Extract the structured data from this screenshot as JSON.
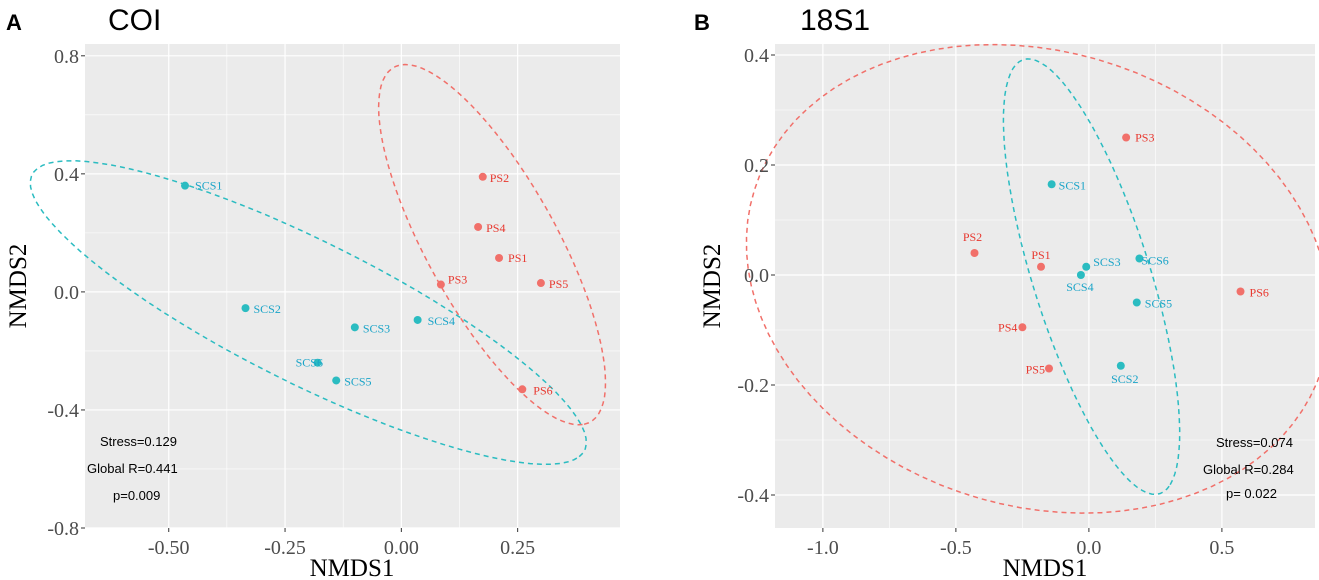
{
  "colors": {
    "group_PS": "#f1706a",
    "group_SCS": "#2bbcc1",
    "label_PS": "#e8382f",
    "label_SCS": "#1aa4c8",
    "panel_bg": "#ebebeb",
    "grid": "#ffffff",
    "axis_text": "#4d4d4d"
  },
  "chart_data": [
    {
      "type": "scatter",
      "panel_label": "A",
      "title": "COI",
      "xlabel": "NMDS1",
      "ylabel": "NMDS2",
      "xlim": [
        -0.68,
        0.47
      ],
      "ylim": [
        -0.8,
        0.84
      ],
      "xticks": [
        -0.5,
        -0.25,
        0.0,
        0.25
      ],
      "xtick_labels": [
        "-0.50",
        "-0.25",
        "0.00",
        "0.25"
      ],
      "yticks": [
        -0.8,
        -0.4,
        0.0,
        0.4,
        0.8
      ],
      "ytick_labels": [
        "-0.8",
        "-0.4",
        "0.0",
        "0.4",
        "0.8"
      ],
      "series": [
        {
          "name": "PS",
          "points": [
            {
              "label": "PS1",
              "x": 0.21,
              "y": 0.115
            },
            {
              "label": "PS2",
              "x": 0.175,
              "y": 0.39
            },
            {
              "label": "PS3",
              "x": 0.085,
              "y": 0.025
            },
            {
              "label": "PS4",
              "x": 0.165,
              "y": 0.22
            },
            {
              "label": "PS5",
              "x": 0.3,
              "y": 0.03
            },
            {
              "label": "PS6",
              "x": 0.26,
              "y": -0.33
            }
          ],
          "ellipse": {
            "cx": 0.195,
            "cy": 0.16,
            "rx": 0.64,
            "ry": 0.15,
            "angle": -72
          }
        },
        {
          "name": "SCS",
          "points": [
            {
              "label": "SCS1",
              "x": -0.465,
              "y": 0.36
            },
            {
              "label": "SCS2",
              "x": -0.335,
              "y": -0.055
            },
            {
              "label": "SCS3",
              "x": -0.1,
              "y": -0.12
            },
            {
              "label": "SCS4",
              "x": 0.035,
              "y": -0.095
            },
            {
              "label": "SCS5",
              "x": -0.14,
              "y": -0.3
            },
            {
              "label": "SCS6",
              "x": -0.18,
              "y": -0.24
            }
          ],
          "ellipse": {
            "cx": -0.2,
            "cy": -0.07,
            "rx": 0.76,
            "ry": 0.21,
            "angle": -40
          }
        }
      ],
      "annotations": [
        "Stress=0.129",
        "Global R=0.441",
        "p=0.009"
      ]
    },
    {
      "type": "scatter",
      "panel_label": "B",
      "title": "18S1",
      "xlabel": "NMDS1",
      "ylabel": "NMDS2",
      "xlim": [
        -1.18,
        0.85
      ],
      "ylim": [
        -0.46,
        0.42
      ],
      "xticks": [
        -1.0,
        -0.5,
        0.0,
        0.5
      ],
      "xtick_labels": [
        "-1.0",
        "-0.5",
        "0.0",
        "0.5"
      ],
      "yticks": [
        -0.4,
        -0.2,
        0.0,
        0.2,
        0.4
      ],
      "ytick_labels": [
        "-0.4",
        "-0.2",
        "0.0",
        "0.2",
        "0.4"
      ],
      "series": [
        {
          "name": "PS",
          "points": [
            {
              "label": "PS1",
              "x": -0.18,
              "y": 0.015
            },
            {
              "label": "PS2",
              "x": -0.43,
              "y": 0.04
            },
            {
              "label": "PS3",
              "x": 0.14,
              "y": 0.25
            },
            {
              "label": "PS4",
              "x": -0.25,
              "y": -0.095
            },
            {
              "label": "PS5",
              "x": -0.15,
              "y": -0.17
            },
            {
              "label": "PS6",
              "x": 0.57,
              "y": -0.03
            }
          ],
          "ellipse": {
            "cx": -0.19,
            "cy": -0.007,
            "rx": 1.1,
            "ry": 0.42,
            "angle": -4
          }
        },
        {
          "name": "SCS",
          "points": [
            {
              "label": "SCS1",
              "x": -0.14,
              "y": 0.165
            },
            {
              "label": "SCS2",
              "x": 0.12,
              "y": -0.165
            },
            {
              "label": "SCS3",
              "x": -0.01,
              "y": 0.015
            },
            {
              "label": "SCS4",
              "x": -0.03,
              "y": 0.0
            },
            {
              "label": "SCS5",
              "x": 0.18,
              "y": -0.05
            },
            {
              "label": "SCS6",
              "x": 0.19,
              "y": 0.03
            }
          ],
          "ellipse": {
            "cx": 0.01,
            "cy": -0.003,
            "rx": 0.48,
            "ry": 0.19,
            "angle": -52
          }
        }
      ],
      "annotations": [
        "Stress=0.074",
        "Global R=0.284",
        "p= 0.022"
      ]
    }
  ]
}
